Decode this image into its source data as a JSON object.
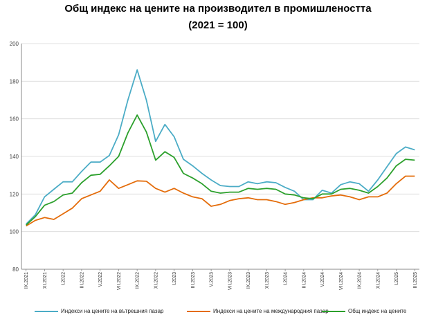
{
  "chart_data": {
    "type": "line",
    "title": "Общ индекс на цените на производител в промишлеността",
    "subtitle": "(2021 = 100)",
    "ylim": [
      80,
      200
    ],
    "yticks": [
      80,
      100,
      120,
      140,
      160,
      180,
      200
    ],
    "x": [
      "IX.2021",
      "X.2021",
      "XI.2021",
      "XII.2021",
      "I.2022",
      "II.2022",
      "III.2022",
      "IV.2022",
      "V.2022",
      "VI.2022",
      "VII.2022",
      "VIII.2022",
      "IX.2022",
      "X.2022",
      "XI.2022",
      "XII.2022",
      "I.2023",
      "II.2023",
      "III.2023",
      "IV.2023",
      "V.2023",
      "VI.2023",
      "VII.2023",
      "VIII.2023",
      "IX.2023",
      "X.2023",
      "XI.2023",
      "XII.2023",
      "I.2024",
      "II.2024",
      "III.2024",
      "IV.2024",
      "V.2024",
      "VI.2024",
      "VII.2024",
      "VIII.2024",
      "IX.2024",
      "X.2024",
      "XI.2024",
      "XII.2024",
      "I.2025",
      "II.2025",
      "III.2025"
    ],
    "xticks": [
      "IX.2021",
      "XI.2021",
      "I.2022",
      "III.2022",
      "V.2022",
      "VII.2022",
      "IX.2022",
      "XI.2022",
      "I.2023",
      "III.2023",
      "V.2023",
      "VII.2023",
      "IX.2023",
      "XI.2023",
      "I.2024",
      "III.2024",
      "V.2024",
      "VII.2024",
      "IX.2024",
      "XI.2024",
      "I.2025",
      "III.2025"
    ],
    "series": [
      {
        "name": "Индекси на цените на вътрешния пазар",
        "color": "#4bacc6",
        "values": [
          104,
          109,
          118.5,
          122.5,
          126.5,
          126.5,
          132,
          137,
          137,
          140.5,
          151.5,
          170,
          186,
          170,
          148,
          157,
          150.5,
          138.5,
          135,
          131,
          127.5,
          124.5,
          124,
          124,
          126.5,
          125.5,
          126.5,
          126,
          123.5,
          121.5,
          117,
          117,
          122,
          120.5,
          125,
          126.5,
          125.5,
          121.5,
          127.5,
          134.5,
          141.5,
          145,
          143.5
        ]
      },
      {
        "name": "Индекси на цените на международния пазар",
        "color": "#e46c0a",
        "values": [
          103,
          106,
          107.5,
          106.5,
          109.5,
          112.5,
          117.5,
          119.5,
          121.5,
          127.5,
          123,
          125,
          127,
          126.8,
          123,
          121,
          123,
          120.5,
          118.5,
          117.5,
          113.5,
          114.5,
          116.5,
          117.5,
          118,
          117,
          117,
          116,
          114.5,
          115.5,
          117,
          118,
          118,
          119,
          119.5,
          118.5,
          117,
          118.5,
          118.5,
          120.5,
          125.5,
          129.5,
          129.5
        ]
      },
      {
        "name": "Общ индекс на цените",
        "color": "#2ca02c",
        "values": [
          103.5,
          108,
          114,
          116,
          119.5,
          120.5,
          126,
          130,
          130.5,
          135,
          140,
          152.5,
          162,
          153,
          138,
          142.5,
          139.5,
          131,
          128.5,
          125.5,
          121.5,
          120.5,
          121,
          121,
          123,
          122.5,
          123,
          122.5,
          120,
          119.5,
          118,
          117.5,
          120,
          120,
          122.5,
          123,
          122,
          120.5,
          124,
          128.5,
          135,
          138.5,
          138
        ]
      }
    ]
  }
}
